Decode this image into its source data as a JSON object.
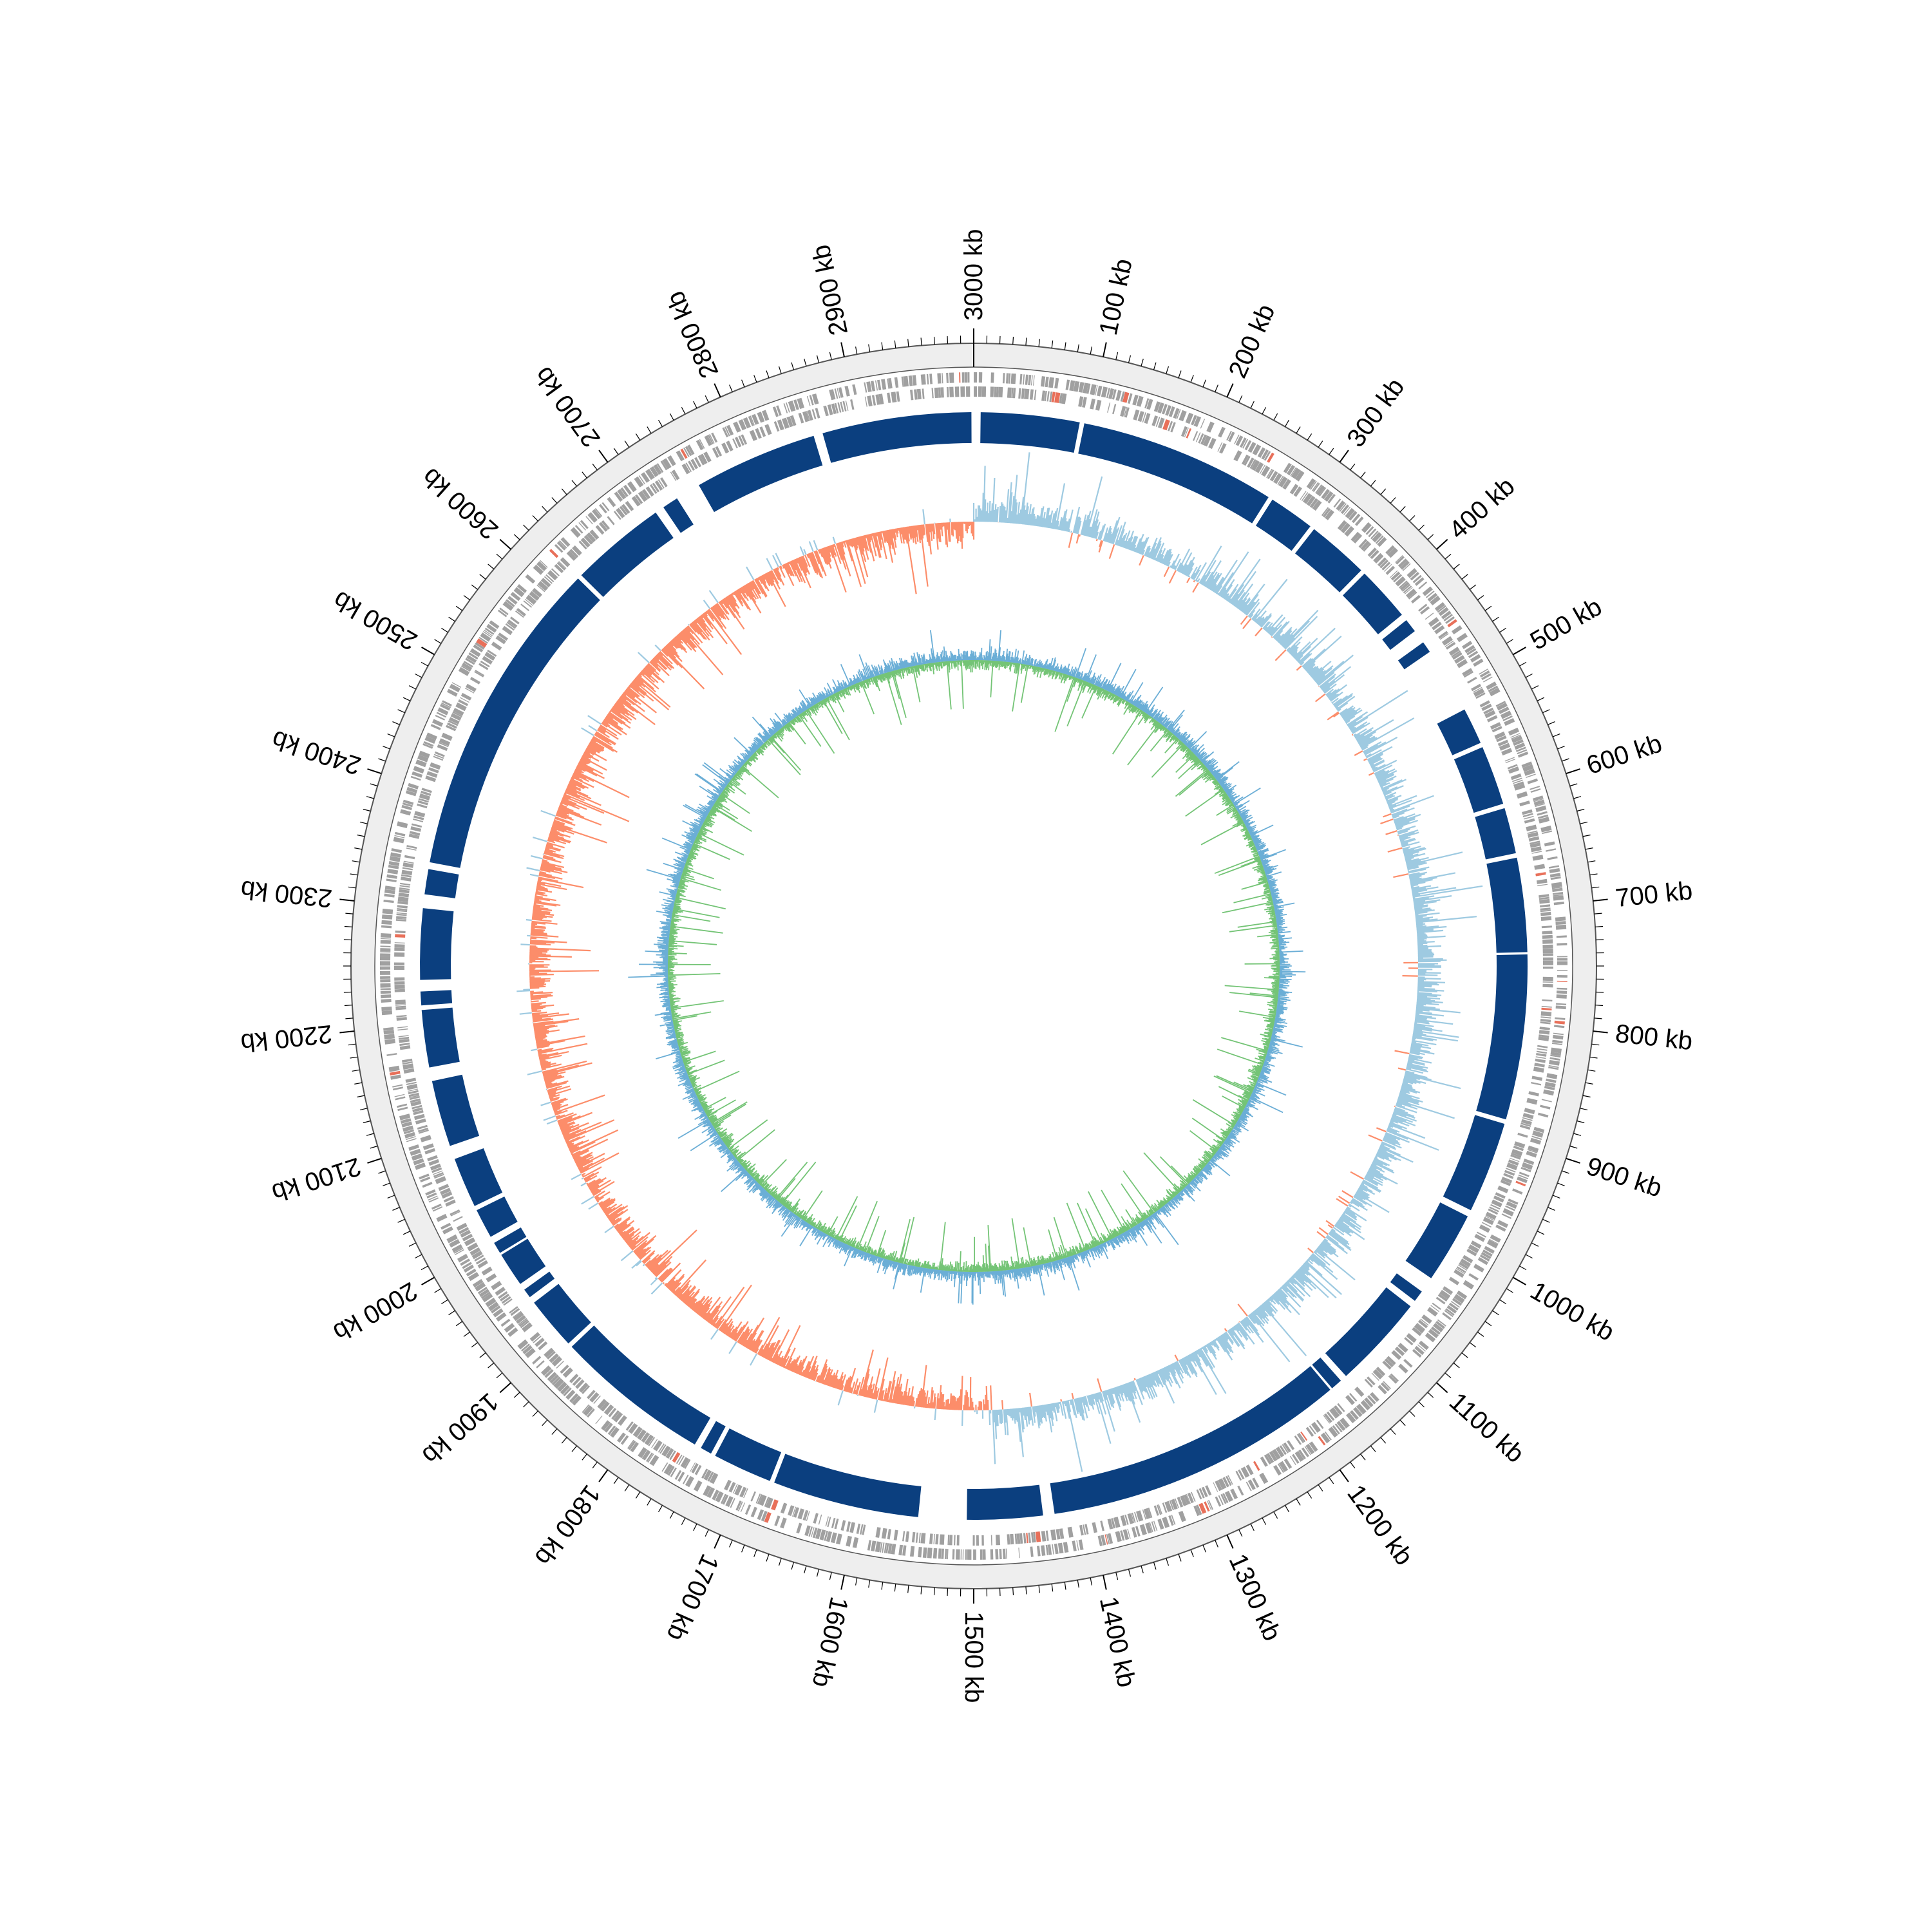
{
  "genome": {
    "length_kb": 3000,
    "unit": "kb",
    "origin_label": "3000 kb"
  },
  "axis": {
    "major_tick_interval_kb": 100,
    "minor_tick_interval_kb": 10,
    "labels": [
      "3000 kb",
      "100 kb",
      "200 kb",
      "300 kb",
      "400 kb",
      "500 kb",
      "600 kb",
      "700 kb",
      "800 kb",
      "900 kb",
      "1000 kb",
      "1100 kb",
      "1200 kb",
      "1300 kb",
      "1400 kb",
      "1500 kb",
      "1600 kb",
      "1700 kb",
      "1800 kb",
      "1900 kb",
      "2000 kb",
      "2100 kb",
      "2200 kb",
      "2300 kb",
      "2400 kb",
      "2500 kb",
      "2600 kb",
      "2700 kb",
      "2800 kb",
      "2900 kb"
    ]
  },
  "tracks": {
    "genes": {
      "color": "#a0a0a0",
      "rna_color": "#e8705a"
    },
    "contig_blocks": {
      "color": "#0b3f7f",
      "segments_kb": [
        [
          6,
          92
        ],
        [
          96,
          268
        ],
        [
          272,
          312
        ],
        [
          316,
          370
        ],
        [
          374,
          422
        ],
        [
          428,
          440
        ],
        [
          452,
          462
        ],
        [
          520,
          552
        ],
        [
          556,
          608
        ],
        [
          612,
          652
        ],
        [
          656,
          738
        ],
        [
          740,
          884
        ],
        [
          888,
          968
        ],
        [
          974,
          1036
        ],
        [
          1050,
          1060
        ],
        [
          1066,
          1148
        ],
        [
          1154,
          1164
        ],
        [
          1166,
          1430
        ],
        [
          1440,
          1506
        ],
        [
          1548,
          1676
        ],
        [
          1680,
          1732
        ],
        [
          1736,
          1746
        ],
        [
          1752,
          1888
        ],
        [
          1892,
          1938
        ],
        [
          1944,
          1952
        ],
        [
          1958,
          1988
        ],
        [
          1990,
          2000
        ],
        [
          2006,
          2032
        ],
        [
          2036,
          2080
        ],
        [
          2092,
          2150
        ],
        [
          2162,
          2212
        ],
        [
          2216,
          2228
        ],
        [
          2238,
          2300
        ],
        [
          2312,
          2334
        ],
        [
          2340,
          2620
        ],
        [
          2624,
          2708
        ],
        [
          2716,
          2730
        ],
        [
          2752,
          2860
        ],
        [
          2868,
          2998
        ]
      ]
    },
    "gc_skew": {
      "positive_color": "#9ecae1",
      "negative_color": "#fc8d6a",
      "positive_range_kb": [
        0,
        1480
      ]
    },
    "gc_content": {
      "above_color": "#6baed6",
      "below_color": "#74c476"
    }
  }
}
